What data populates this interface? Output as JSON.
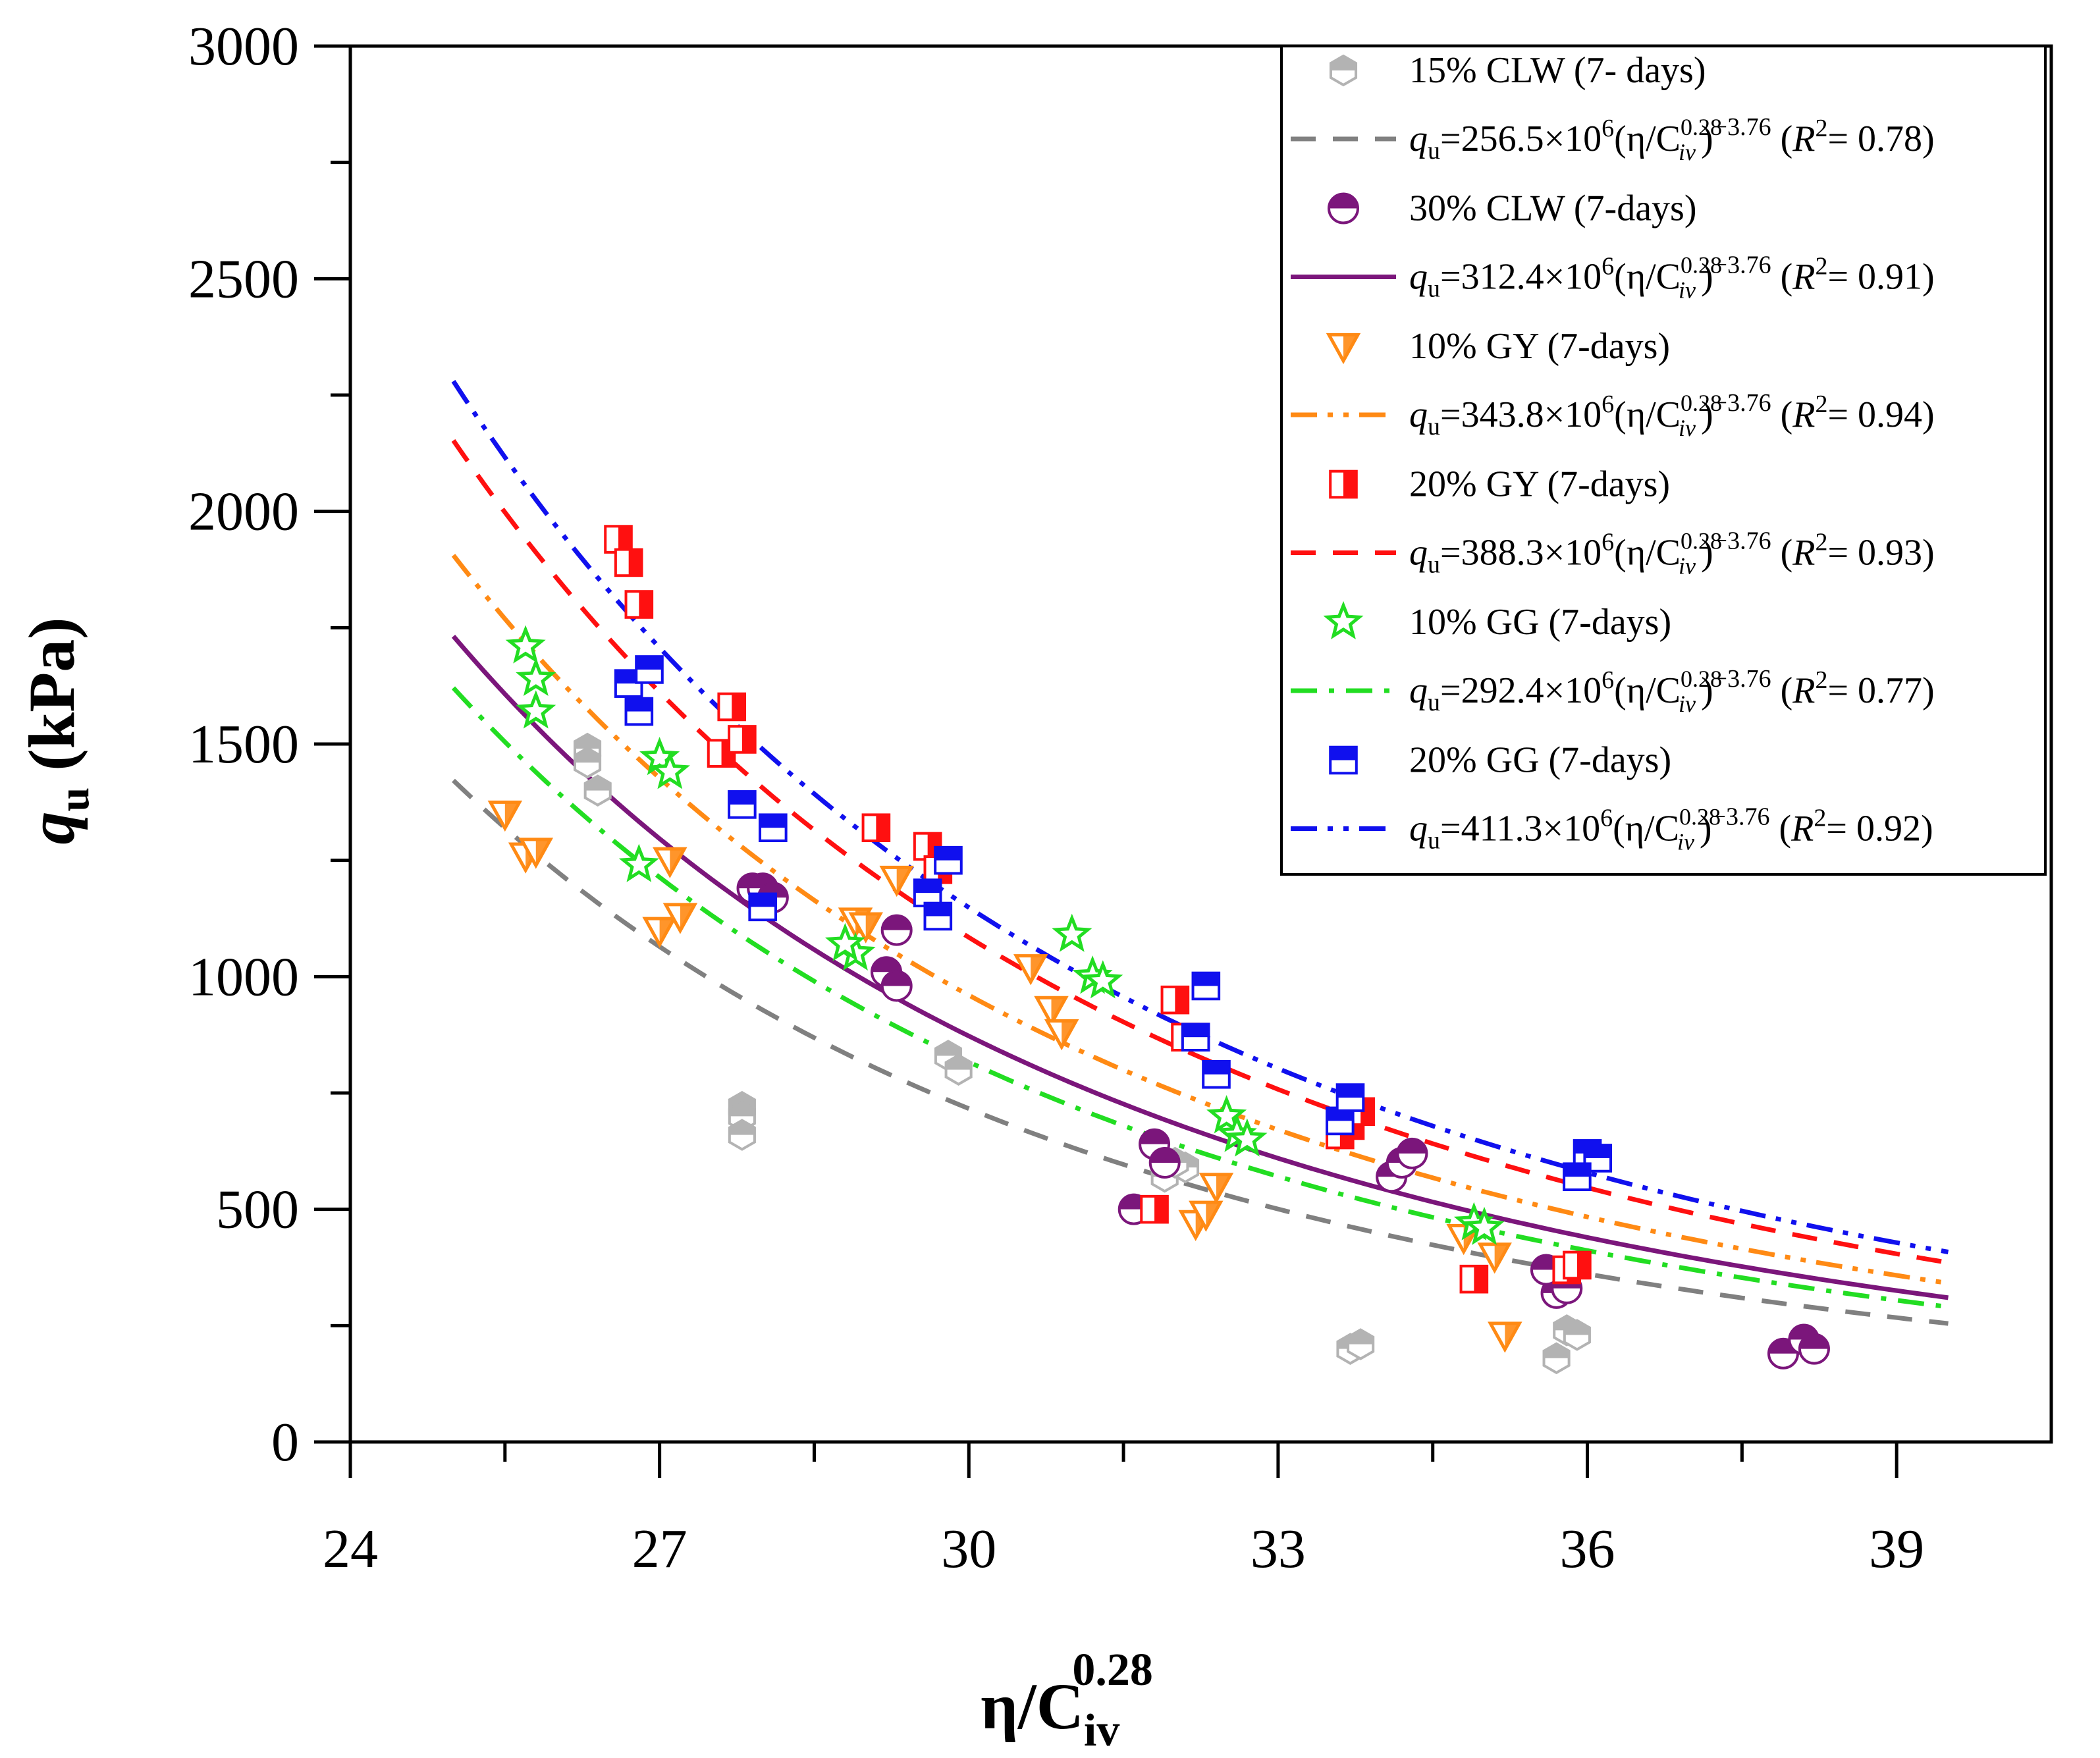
{
  "chart_data": {
    "type": "scatter",
    "title": "",
    "xlabel": "η/C_iv^0.28",
    "ylabel": "q_u (kPa)",
    "xlabel_main": "η/C",
    "xlabel_sup": "0.28",
    "xlabel_sub": "iv",
    "ylabel_q": "q",
    "ylabel_sub": "u",
    "ylabel_unit": " (kPa)",
    "xlim": [
      24,
      40.5
    ],
    "ylim": [
      0,
      3000
    ],
    "xticks": [
      24,
      27,
      30,
      33,
      36,
      39
    ],
    "xtick_labels": [
      "24",
      "27",
      "30",
      "33",
      "36",
      "39"
    ],
    "yticks": [
      0,
      500,
      1000,
      1500,
      2000,
      2500,
      3000
    ],
    "ytick_labels": [
      "0",
      "500",
      "1000",
      "1500",
      "2000",
      "2500",
      "3000"
    ],
    "fit_exponent": -3.76,
    "fit_x_range": [
      25,
      39.5
    ],
    "legend_placement": "top-right",
    "series": [
      {
        "name": "15% CLW (7- days)",
        "color": "#b3b3b3",
        "marker": "hexagon-half",
        "fit": {
          "coef": 256.5,
          "r2": "0.78",
          "color": "#808080",
          "dash": "dash",
          "coef_text": "=256.5×10",
          "r2_text": "= 0.78)"
        },
        "points": [
          [
            26.3,
            1490
          ],
          [
            26.3,
            1460
          ],
          [
            26.4,
            1400
          ],
          [
            27.8,
            720
          ],
          [
            27.8,
            700
          ],
          [
            27.8,
            660
          ],
          [
            29.8,
            830
          ],
          [
            29.9,
            800
          ],
          [
            31.9,
            570
          ],
          [
            32.1,
            590
          ],
          [
            32.0,
            600
          ],
          [
            33.7,
            200
          ],
          [
            33.8,
            210
          ],
          [
            35.7,
            180
          ],
          [
            35.8,
            240
          ],
          [
            35.9,
            230
          ],
          [
            35.6,
            370
          ]
        ]
      },
      {
        "name": "30% CLW (7-days)",
        "color": "#7b167b",
        "marker": "circle-half",
        "fit": {
          "coef": 312.4,
          "r2": "0.91",
          "color": "#7b167b",
          "dash": "solid",
          "coef_text": "=312.4×10",
          "r2_text": "= 0.91)"
        },
        "points": [
          [
            27.9,
            1190
          ],
          [
            28.0,
            1190
          ],
          [
            28.1,
            1170
          ],
          [
            29.3,
            1100
          ],
          [
            29.2,
            1010
          ],
          [
            29.3,
            980
          ],
          [
            31.6,
            500
          ],
          [
            31.8,
            640
          ],
          [
            31.9,
            600
          ],
          [
            34.1,
            570
          ],
          [
            34.2,
            600
          ],
          [
            34.3,
            620
          ],
          [
            35.7,
            320
          ],
          [
            35.8,
            330
          ],
          [
            35.6,
            370
          ],
          [
            37.9,
            190
          ],
          [
            38.1,
            220
          ],
          [
            38.2,
            200
          ]
        ]
      },
      {
        "name": "10% GY (7-days)",
        "color": "#ff8a14",
        "marker": "triangle-down",
        "fit": {
          "coef": 343.8,
          "r2": "0.94",
          "color": "#ff8a14",
          "dash": "dashdotdot",
          "coef_text": "=343.8×10",
          "r2_text": "= 0.94)"
        },
        "points": [
          [
            25.5,
            1350
          ],
          [
            25.7,
            1260
          ],
          [
            25.8,
            1270
          ],
          [
            27.0,
            1100
          ],
          [
            27.2,
            1130
          ],
          [
            27.1,
            1250
          ],
          [
            28.9,
            1120
          ],
          [
            29.0,
            1110
          ],
          [
            29.3,
            1210
          ],
          [
            30.6,
            1020
          ],
          [
            30.8,
            930
          ],
          [
            30.9,
            880
          ],
          [
            32.2,
            470
          ],
          [
            32.3,
            490
          ],
          [
            32.4,
            550
          ],
          [
            34.8,
            440
          ],
          [
            35.1,
            400
          ],
          [
            35.2,
            230
          ]
        ]
      },
      {
        "name": "20% GY (7-days)",
        "color": "#ff1010",
        "marker": "square-half-right",
        "fit": {
          "coef": 388.3,
          "r2": "0.93",
          "color": "#ff1010",
          "dash": "dash",
          "coef_text": "=388.3×10",
          "r2_text": "= 0.93)"
        },
        "points": [
          [
            26.6,
            1940
          ],
          [
            26.7,
            1890
          ],
          [
            26.8,
            1800
          ],
          [
            27.6,
            1480
          ],
          [
            27.7,
            1580
          ],
          [
            27.8,
            1510
          ],
          [
            29.1,
            1320
          ],
          [
            29.6,
            1280
          ],
          [
            29.7,
            1230
          ],
          [
            32.0,
            950
          ],
          [
            32.1,
            870
          ],
          [
            32.2,
            870
          ],
          [
            31.8,
            500
          ],
          [
            33.7,
            680
          ],
          [
            33.8,
            710
          ],
          [
            33.6,
            660
          ],
          [
            34.9,
            350
          ],
          [
            35.8,
            370
          ],
          [
            35.9,
            380
          ]
        ]
      },
      {
        "name": "10% GG (7-days)",
        "color": "#22dd22",
        "marker": "star",
        "fit": {
          "coef": 292.4,
          "r2": "0.77",
          "color": "#22dd22",
          "dash": "dashdot",
          "coef_text": "=292.4×10",
          "r2_text": "= 0.77)"
        },
        "points": [
          [
            25.7,
            1710
          ],
          [
            25.8,
            1640
          ],
          [
            25.8,
            1570
          ],
          [
            26.8,
            1240
          ],
          [
            27.0,
            1470
          ],
          [
            27.1,
            1440
          ],
          [
            28.9,
            1050
          ],
          [
            28.8,
            1070
          ],
          [
            31.0,
            1090
          ],
          [
            31.2,
            1000
          ],
          [
            31.3,
            990
          ],
          [
            32.5,
            700
          ],
          [
            32.6,
            660
          ],
          [
            32.7,
            650
          ],
          [
            34.9,
            470
          ],
          [
            35.0,
            460
          ]
        ]
      },
      {
        "name": "20% GG (7-days)",
        "color": "#1010ee",
        "marker": "square-half-top",
        "fit": {
          "coef": 411.3,
          "r2": "0.92",
          "color": "#1010ee",
          "dash": "dashdotdot",
          "coef_text": "=411.3×10",
          "r2_text": "= 0.92)"
        },
        "points": [
          [
            26.7,
            1630
          ],
          [
            26.9,
            1660
          ],
          [
            26.8,
            1570
          ],
          [
            27.8,
            1370
          ],
          [
            28.1,
            1320
          ],
          [
            28.0,
            1150
          ],
          [
            29.6,
            1180
          ],
          [
            29.7,
            1130
          ],
          [
            29.8,
            1250
          ],
          [
            32.3,
            980
          ],
          [
            32.4,
            790
          ],
          [
            32.2,
            870
          ],
          [
            33.6,
            690
          ],
          [
            33.7,
            740
          ],
          [
            36.0,
            620
          ],
          [
            36.1,
            610
          ],
          [
            35.9,
            570
          ]
        ]
      }
    ],
    "legend_fit_prefix": "q",
    "legend_fit_sub": "u",
    "legend_fit_sup": "6",
    "legend_fit_mid": "(η/C",
    "legend_fit_mid_sup": "0.28",
    "legend_fit_mid_sub": "iv",
    "legend_fit_close": ")",
    "legend_fit_exp": "−3.76",
    "legend_fit_r2_open": " (",
    "legend_fit_r2_var": "R",
    "legend_fit_r2_sup": "2"
  }
}
